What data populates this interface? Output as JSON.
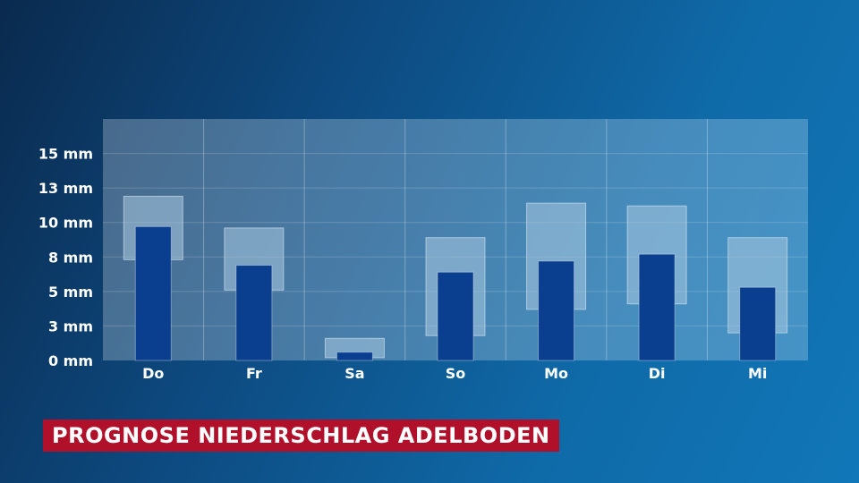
{
  "chart_data": {
    "type": "bar",
    "title": "PROGNOSE NIEDERSCHLAG ADELBODEN",
    "ylabel": "",
    "xlabel": "",
    "unit": "mm",
    "categories": [
      "Do",
      "Fr",
      "Sa",
      "So",
      "Mo",
      "Di",
      "Mi"
    ],
    "yticks": [
      {
        "value": 0,
        "label": "0 mm"
      },
      {
        "value": 2.5,
        "label": "3 mm"
      },
      {
        "value": 5,
        "label": "5 mm"
      },
      {
        "value": 7.5,
        "label": "8 mm"
      },
      {
        "value": 10,
        "label": "10 mm"
      },
      {
        "value": 12.5,
        "label": "13 mm"
      },
      {
        "value": 15,
        "label": "15 mm"
      }
    ],
    "ylim": [
      0,
      17.5
    ],
    "grid": true,
    "series": [
      {
        "values": [
          9.7,
          6.9,
          0.6,
          6.4,
          7.2,
          7.7,
          5.3
        ]
      }
    ],
    "ranges": [
      {
        "low": 7.3,
        "high": 11.9
      },
      {
        "low": 5.1,
        "high": 9.6
      },
      {
        "low": 0.2,
        "high": 1.6
      },
      {
        "low": 1.8,
        "high": 8.9
      },
      {
        "low": 3.7,
        "high": 11.4
      },
      {
        "low": 4.1,
        "high": 11.2
      },
      {
        "low": 2.0,
        "high": 8.9
      }
    ],
    "colors": {
      "bar": "#0a3f8f",
      "range": "#a9c8e0",
      "panel": "#8fb5d3",
      "title_bg": "#b0102a"
    }
  }
}
